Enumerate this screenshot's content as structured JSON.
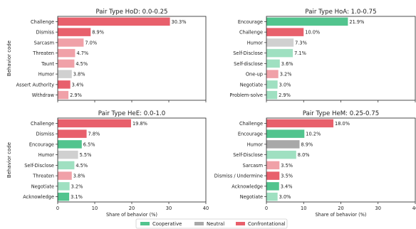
{
  "colors": {
    "cooperative": "#52c48e",
    "cooperative_light": "#9fe0c1",
    "neutral": "#a8a8a8",
    "neutral_light": "#d0d0d0",
    "confrontational": "#e8606c",
    "confrontational_light": "#f0a1a8"
  },
  "legend": {
    "placement": "bottom-center",
    "items": [
      {
        "label": "Cooperative",
        "color": "#52c48e"
      },
      {
        "label": "Neutral",
        "color": "#a8a8a8"
      },
      {
        "label": "Confrontational",
        "color": "#e8606c"
      }
    ]
  },
  "chart_data": [
    {
      "type": "bar",
      "orientation": "horizontal",
      "title": "Pair Type HoD: 0.0-0.25",
      "ylabel": "Behavior code",
      "xlabel": "",
      "xlim": [
        0,
        40
      ],
      "xticks": [],
      "categories": [
        "Challenge",
        "Dismiss",
        "Sarcasm",
        "Threaten",
        "Taunt",
        "Humor",
        "Assert Authority",
        "Withdraw"
      ],
      "values": [
        30.3,
        8.9,
        7.0,
        4.7,
        4.5,
        3.8,
        3.4,
        2.9
      ],
      "value_labels": [
        "30.3%",
        "8.9%",
        "7.0%",
        "4.7%",
        "4.5%",
        "3.8%",
        "3.4%",
        "2.9%"
      ],
      "colors": [
        "#e8606c",
        "#e8606c",
        "#f0a1a8",
        "#f0a1a8",
        "#f0a1a8",
        "#d0d0d0",
        "#e8606c",
        "#f0a1a8"
      ]
    },
    {
      "type": "bar",
      "orientation": "horizontal",
      "title": "Pair Type HoA: 1.0-0.75",
      "ylabel": "",
      "xlabel": "",
      "xlim": [
        0,
        40
      ],
      "xticks": [],
      "categories": [
        "Encourage",
        "Challenge",
        "Humor",
        "Self-Disclose",
        "Self-disclose",
        "One-up",
        "Negotiate",
        "Problem-solve"
      ],
      "values": [
        21.9,
        10.0,
        7.3,
        7.1,
        3.6,
        3.2,
        3.0,
        2.9
      ],
      "value_labels": [
        "21.9%",
        "10.0%",
        "7.3%",
        "7.1%",
        "3.6%",
        "3.2%",
        "3.0%",
        "2.9%"
      ],
      "colors": [
        "#52c48e",
        "#e8606c",
        "#d0d0d0",
        "#9fe0c1",
        "#9fe0c1",
        "#f0a1a8",
        "#9fe0c1",
        "#9fe0c1"
      ]
    },
    {
      "type": "bar",
      "orientation": "horizontal",
      "title": "Pair Type HeE: 0.0-1.0",
      "ylabel": "Behavior code",
      "xlabel": "Share of behavior (%)",
      "xlim": [
        0,
        40
      ],
      "xticks": [
        "0",
        "10",
        "20",
        "30",
        "40"
      ],
      "categories": [
        "Challenge",
        "Dismiss",
        "Encourage",
        "Humor",
        "Self-Disclose",
        "Threaten",
        "Negotiate",
        "Acknowledge"
      ],
      "values": [
        19.8,
        7.8,
        6.5,
        5.5,
        4.5,
        3.8,
        3.2,
        3.1
      ],
      "value_labels": [
        "19.8%",
        "7.8%",
        "6.5%",
        "5.5%",
        "4.5%",
        "3.8%",
        "3.2%",
        "3.1%"
      ],
      "colors": [
        "#e8606c",
        "#e8606c",
        "#52c48e",
        "#d0d0d0",
        "#9fe0c1",
        "#f0a1a8",
        "#9fe0c1",
        "#52c48e"
      ]
    },
    {
      "type": "bar",
      "orientation": "horizontal",
      "title": "Pair Type HeM: 0.25-0.75",
      "ylabel": "",
      "xlabel": "Share of behavior (%)",
      "xlim": [
        0,
        40
      ],
      "xticks": [
        "0",
        "10",
        "20",
        "30",
        "40"
      ],
      "categories": [
        "Challenge",
        "Encourage",
        "Humor",
        "Self-Disclose",
        "Sarcasm",
        "Dismiss / Undermine",
        "Acknowledge",
        "Negotiate"
      ],
      "values": [
        18.0,
        10.2,
        8.9,
        8.0,
        3.5,
        3.5,
        3.4,
        3.0
      ],
      "value_labels": [
        "18.0%",
        "10.2%",
        "8.9%",
        "8.0%",
        "3.5%",
        "3.5%",
        "3.4%",
        "3.0%"
      ],
      "colors": [
        "#e8606c",
        "#52c48e",
        "#a8a8a8",
        "#9fe0c1",
        "#f0a1a8",
        "#e8606c",
        "#52c48e",
        "#9fe0c1"
      ]
    }
  ]
}
